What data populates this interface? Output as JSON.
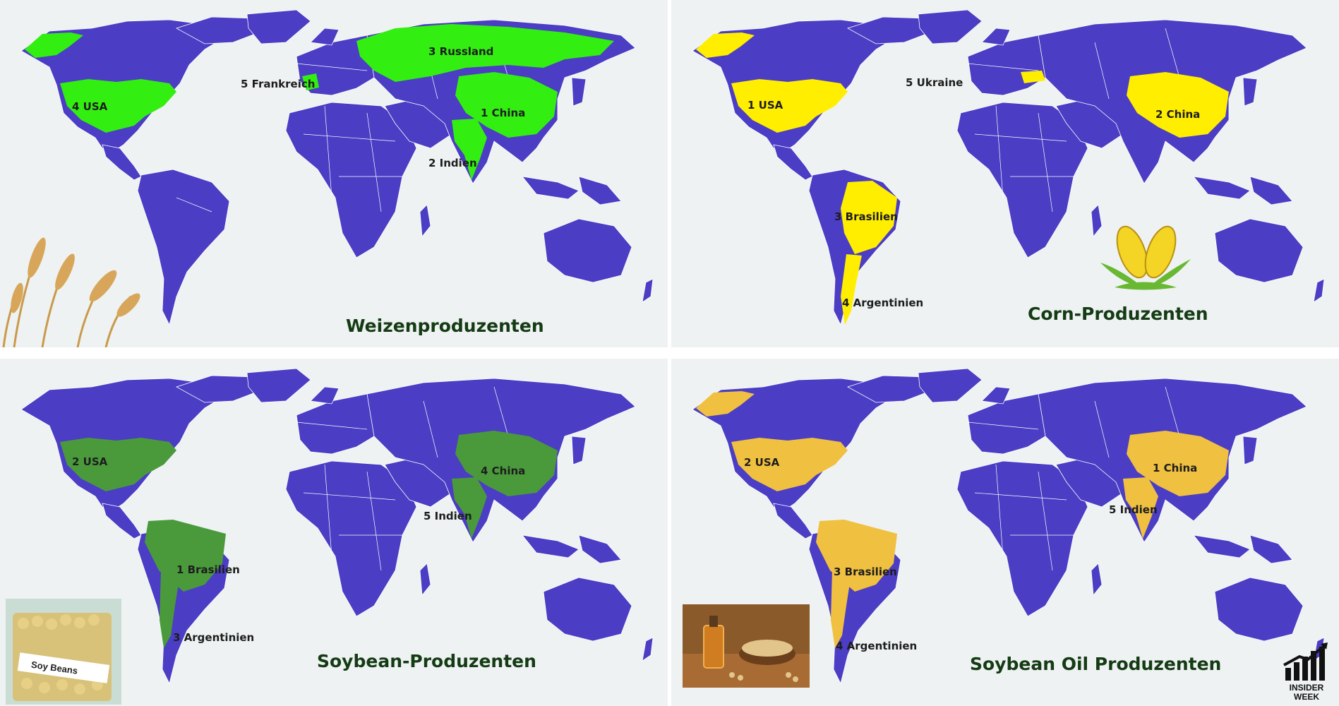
{
  "colors": {
    "background": "#eef2f2",
    "land": "#4b3dc4",
    "wheat_highlight": "#33ee11",
    "corn_highlight": "#ffee00",
    "soybean_highlight": "#4a9a3c",
    "soybean_oil_highlight": "#f0c040",
    "title": "#143b14"
  },
  "panels": [
    {
      "title": "Weizenproduzenten",
      "highlight": "#33ee11",
      "decoration": "wheat-image",
      "labels": [
        "3 Russland",
        "5 Frankreich",
        "4 USA",
        "1 China",
        "2 Indien"
      ]
    },
    {
      "title": "Corn-Produzenten",
      "highlight": "#ffee00",
      "decoration": "corn-image",
      "labels": [
        "5 Ukraine",
        "1 USA",
        "2 China",
        "3 Brasilien",
        "4 Argentinien"
      ]
    },
    {
      "title": "Soybean-Produzenten",
      "highlight": "#4a9a3c",
      "decoration": "soy-beans-image",
      "photo_caption": "Soy Beans",
      "labels": [
        "2 USA",
        "4 China",
        "5 Indien",
        "1 Brasilien",
        "3 Argentinien"
      ]
    },
    {
      "title": "Soybean Oil Produzenten",
      "highlight": "#f0c040",
      "decoration": "soybean-oil-image",
      "labels": [
        "2 USA",
        "1 China",
        "5 Indien",
        "3 Brasilien",
        "4 Argentinien"
      ]
    }
  ],
  "logo": {
    "line1": "INSIDER",
    "line2": "WEEK",
    "icon": "chart-bars-icon"
  }
}
